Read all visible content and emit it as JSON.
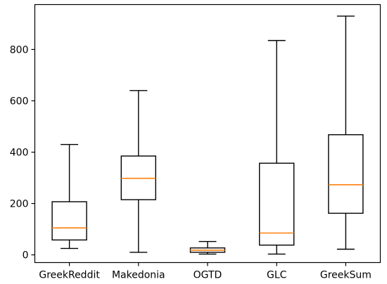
{
  "chart_data": {
    "type": "box",
    "title": "",
    "xlabel": "",
    "ylabel": "",
    "categories": [
      "GreekReddit",
      "Makedonia",
      "OGTD",
      "GLC",
      "GreekSum"
    ],
    "boxes": [
      {
        "name": "GreekReddit",
        "whislo": 25,
        "q1": 58,
        "med": 105,
        "q3": 207,
        "whishi": 430
      },
      {
        "name": "Makedonia",
        "whislo": 10,
        "q1": 215,
        "med": 298,
        "q3": 385,
        "whishi": 640
      },
      {
        "name": "OGTD",
        "whislo": 3,
        "q1": 10,
        "med": 18,
        "q3": 27,
        "whishi": 52
      },
      {
        "name": "GLC",
        "whislo": 3,
        "q1": 38,
        "med": 85,
        "q3": 357,
        "whishi": 835
      },
      {
        "name": "GreekSum",
        "whislo": 22,
        "q1": 162,
        "med": 273,
        "q3": 468,
        "whishi": 930
      }
    ],
    "ylim": [
      -30,
      975
    ],
    "yticks": [
      0,
      200,
      400,
      600,
      800
    ],
    "grid": false,
    "colors": {
      "box": "#000000",
      "median": "#ff7f0e"
    }
  }
}
